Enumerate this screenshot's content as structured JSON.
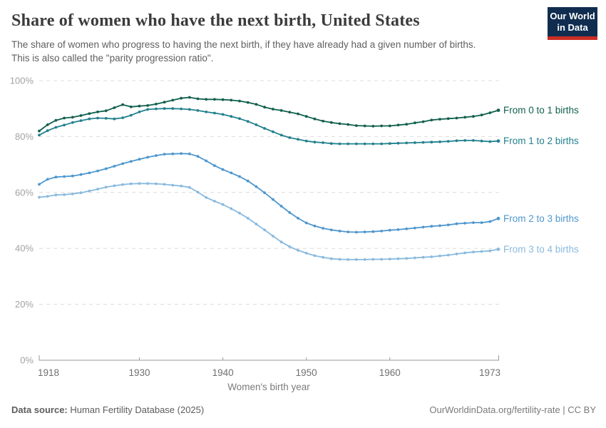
{
  "header": {
    "title": "Share of women who have the next birth, United States",
    "subtitle_line1": "The share of women who progress to having the next birth, if they have already had a given number of births.",
    "subtitle_line2": "This is also called the \"parity progression ratio\".",
    "logo": {
      "line1": "Our World",
      "line2": "in Data",
      "bg_color": "#102d50",
      "bar_color": "#cb2d25"
    }
  },
  "chart_data": {
    "type": "line",
    "title": "Share of women who have the next birth, United States",
    "xlabel": "Women's birth year",
    "ylabel": "",
    "ylim": [
      0,
      100
    ],
    "yticks": [
      0,
      20,
      40,
      60,
      80,
      100
    ],
    "ytick_suffix": "%",
    "xticks": [
      1918,
      1930,
      1940,
      1950,
      1960,
      1973
    ],
    "grid": "horizontal-dashed",
    "legend_position": "right-of-line-ends",
    "marker": "point-per-year",
    "x": [
      1918,
      1919,
      1920,
      1921,
      1922,
      1923,
      1924,
      1925,
      1926,
      1927,
      1928,
      1929,
      1930,
      1931,
      1932,
      1933,
      1934,
      1935,
      1936,
      1937,
      1938,
      1939,
      1940,
      1941,
      1942,
      1943,
      1944,
      1945,
      1946,
      1947,
      1948,
      1949,
      1950,
      1951,
      1952,
      1953,
      1954,
      1955,
      1956,
      1957,
      1958,
      1959,
      1960,
      1961,
      1962,
      1963,
      1964,
      1965,
      1966,
      1967,
      1968,
      1969,
      1970,
      1971,
      1972,
      1973
    ],
    "series": [
      {
        "name": "From 0 to 1 births",
        "color": "#11604e",
        "values": [
          82.0,
          84.2,
          85.8,
          86.6,
          86.9,
          87.5,
          88.2,
          88.8,
          89.2,
          90.3,
          91.4,
          90.6,
          90.9,
          91.1,
          91.6,
          92.3,
          93.0,
          93.7,
          94.0,
          93.5,
          93.3,
          93.3,
          93.2,
          93.0,
          92.7,
          92.2,
          91.5,
          90.5,
          89.8,
          89.3,
          88.7,
          88.1,
          87.2,
          86.3,
          85.5,
          85.0,
          84.6,
          84.3,
          83.9,
          83.8,
          83.7,
          83.8,
          83.8,
          84.1,
          84.4,
          84.9,
          85.3,
          85.9,
          86.2,
          86.4,
          86.6,
          86.9,
          87.2,
          87.7,
          88.5,
          89.4
        ]
      },
      {
        "name": "From 1 to 2 births",
        "color": "#23818e",
        "values": [
          80.5,
          82.1,
          83.3,
          84.1,
          85.0,
          85.7,
          86.3,
          86.6,
          86.5,
          86.3,
          86.7,
          87.6,
          88.8,
          89.7,
          89.9,
          90.0,
          90.0,
          89.9,
          89.7,
          89.3,
          88.8,
          88.4,
          87.9,
          87.2,
          86.4,
          85.4,
          84.2,
          82.9,
          81.7,
          80.5,
          79.6,
          79.0,
          78.4,
          78.0,
          77.8,
          77.5,
          77.4,
          77.4,
          77.4,
          77.4,
          77.4,
          77.4,
          77.5,
          77.6,
          77.7,
          77.8,
          77.9,
          78.0,
          78.1,
          78.3,
          78.5,
          78.6,
          78.6,
          78.4,
          78.2,
          78.4
        ]
      },
      {
        "name": "From 2 to 3 births",
        "color": "#4e97ce",
        "values": [
          62.9,
          64.7,
          65.5,
          65.7,
          65.9,
          66.4,
          67.0,
          67.7,
          68.5,
          69.4,
          70.3,
          71.1,
          71.9,
          72.6,
          73.2,
          73.7,
          73.8,
          73.9,
          73.8,
          72.9,
          71.3,
          69.6,
          68.2,
          67.0,
          65.7,
          64.1,
          62.1,
          59.9,
          57.5,
          55.1,
          52.8,
          50.8,
          49.1,
          48.0,
          47.2,
          46.6,
          46.2,
          45.9,
          45.8,
          45.9,
          46.0,
          46.2,
          46.5,
          46.7,
          47.0,
          47.3,
          47.6,
          47.9,
          48.1,
          48.4,
          48.8,
          49.0,
          49.2,
          49.2,
          49.6,
          50.7
        ]
      },
      {
        "name": "From 3 to 4 births",
        "color": "#89bade",
        "values": [
          58.3,
          58.6,
          59.1,
          59.2,
          59.5,
          59.9,
          60.5,
          61.2,
          61.9,
          62.4,
          62.8,
          63.1,
          63.2,
          63.2,
          63.1,
          62.9,
          62.6,
          62.3,
          61.8,
          60.1,
          58.2,
          56.9,
          55.7,
          54.2,
          52.6,
          50.8,
          48.7,
          46.6,
          44.4,
          42.3,
          40.6,
          39.3,
          38.3,
          37.4,
          36.8,
          36.3,
          36.1,
          36.0,
          36.0,
          36.0,
          36.1,
          36.1,
          36.2,
          36.3,
          36.4,
          36.6,
          36.8,
          37.0,
          37.3,
          37.6,
          38.0,
          38.4,
          38.7,
          38.9,
          39.1,
          39.7
        ]
      }
    ]
  },
  "footer": {
    "source_label": "Data source:",
    "source_value": " Human Fertility Database (2025)",
    "credit": "OurWorldinData.org/fertility-rate | CC BY"
  },
  "colors": {
    "grid": "#dcdcdc",
    "axis": "#9a9a9a",
    "y_tick_label": "#a2a2a2",
    "x_tick_label": "#6f6f6f",
    "axis_title": "#7b7b7b",
    "title_text": "#3b3b3b",
    "subtitle_text": "#5f5f5f"
  }
}
